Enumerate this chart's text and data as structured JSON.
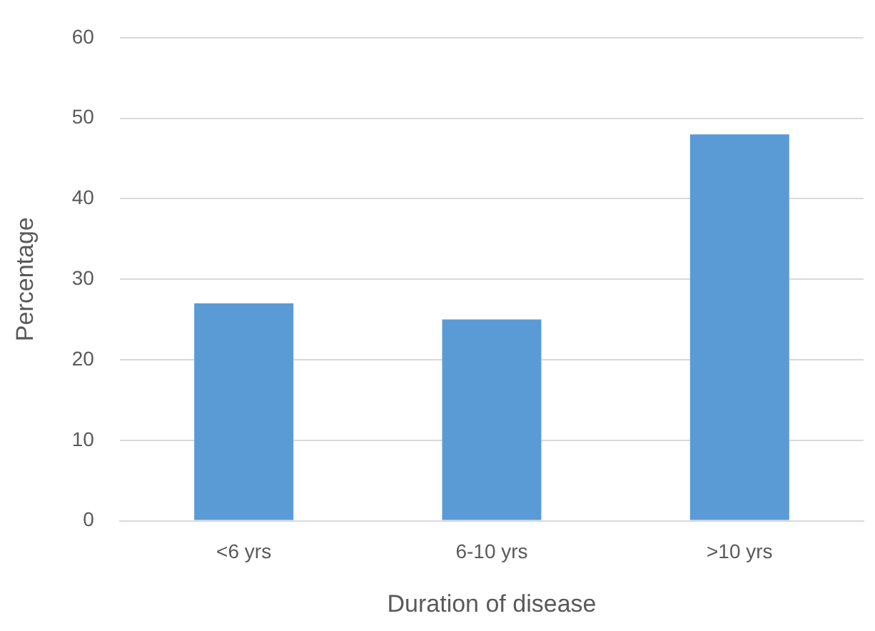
{
  "chart_data": {
    "type": "bar",
    "xlabel": "Duration of disease",
    "ylabel": "Percentage",
    "categories": [
      "<6 yrs",
      "6-10 yrs",
      ">10 yrs"
    ],
    "values": [
      27,
      25,
      48
    ],
    "color": "#5b9bd5",
    "ylim": [
      0,
      60
    ],
    "yticks": [
      0,
      10,
      20,
      30,
      40,
      50,
      60
    ],
    "grid": "y",
    "legend": false
  }
}
